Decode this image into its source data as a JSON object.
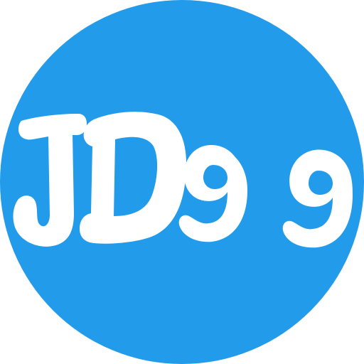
{
  "logo": {
    "text": "JD99",
    "background_color": "#239BEB",
    "text_color": "#FFFFFF"
  }
}
